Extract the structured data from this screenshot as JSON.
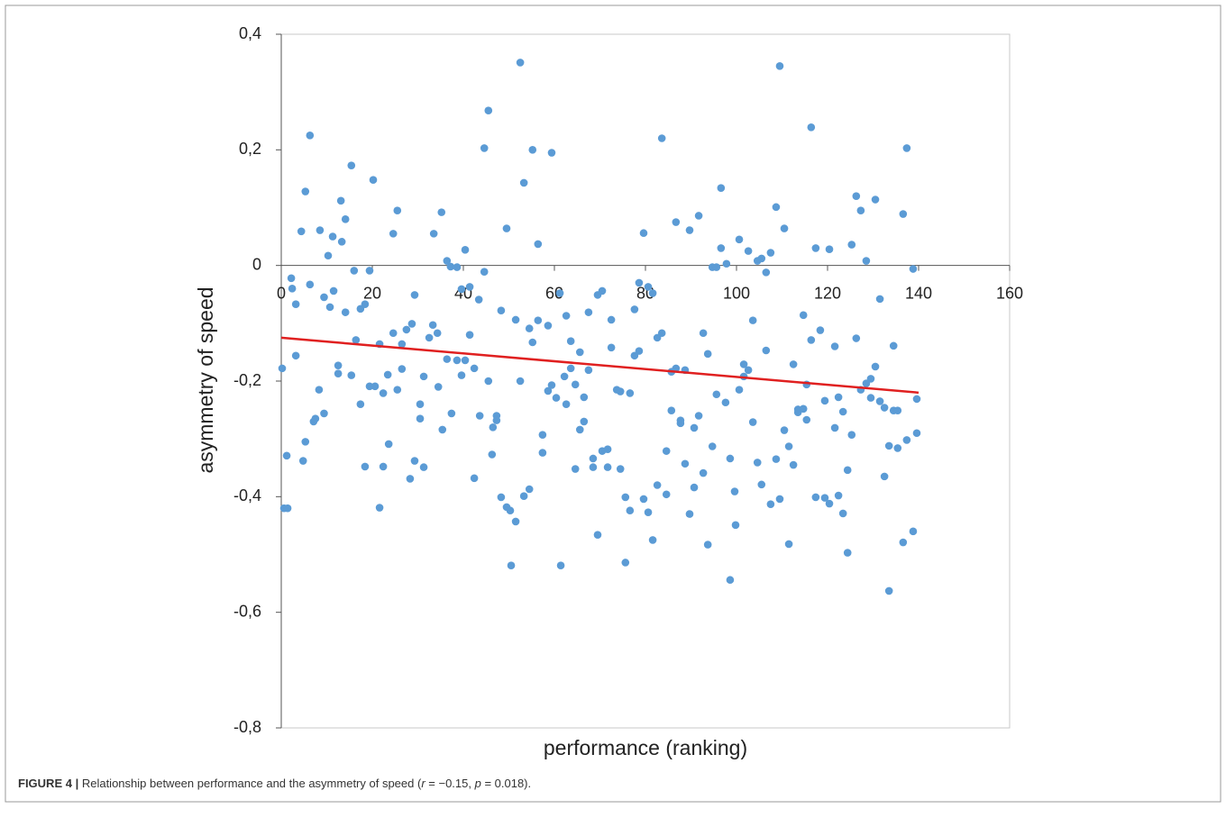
{
  "chart_data": {
    "type": "scatter",
    "x_label": "performance  (ranking)",
    "y_label": "asymmetry  of speed",
    "caption": {
      "label": "FIGURE 4 |",
      "parts": [
        "Relationship between performance and the asymmetry of speed (",
        "r",
        " = −0.15, ",
        "p",
        " = 0.018)."
      ]
    },
    "xlim": [
      0,
      160
    ],
    "xticks": [
      0,
      20,
      40,
      60,
      80,
      100,
      120,
      140,
      160
    ],
    "ylim": [
      -0.8,
      0.4
    ],
    "yticks": [
      {
        "value": -0.8,
        "label": "-0,8"
      },
      {
        "value": -0.6,
        "label": "-0,6"
      },
      {
        "value": -0.4,
        "label": "-0,4"
      },
      {
        "value": -0.2,
        "label": "-0,2"
      },
      0,
      {
        "value": 0.2,
        "label": "0,2"
      },
      {
        "value": 0.4,
        "label": "0,4"
      }
    ],
    "color": "#5b9bd5",
    "trendline": {
      "x": [
        0,
        140
      ],
      "y": [
        -0.125,
        -0.22
      ],
      "color": "#e02020"
    },
    "x": [
      0.2,
      0.6,
      1.4,
      1.2,
      2.2,
      2.4,
      3.2,
      3.2,
      4.4,
      4.8,
      5.3,
      5.3,
      6.3,
      6.3,
      7.1,
      7.5,
      8.3,
      8.5,
      9.4,
      9.4,
      10.3,
      10.7,
      11.3,
      11.5,
      12.5,
      12.5,
      13.1,
      13.3,
      14.1,
      14.1,
      15.4,
      15.4,
      16,
      16.4,
      17.4,
      17.4,
      18.4,
      18.4,
      19.4,
      19.4,
      20.2,
      20.6,
      21.6,
      21.6,
      22.4,
      22.4,
      23.4,
      23.6,
      24.6,
      24.6,
      25.5,
      25.5,
      26.5,
      26.5,
      27.5,
      28.3,
      28.7,
      29.3,
      29.3,
      30.5,
      30.5,
      31.3,
      31.3,
      32.5,
      33.3,
      33.5,
      34.3,
      34.5,
      35.2,
      35.4,
      36.4,
      36.4,
      37.2,
      37.4,
      38.6,
      38.6,
      39.6,
      39.6,
      40.4,
      40.4,
      41.4,
      41.4,
      42.4,
      42.4,
      43.4,
      43.6,
      44.6,
      44.6,
      45.5,
      45.5,
      46.3,
      46.5,
      47.3,
      47.3,
      48.3,
      48.3,
      49.5,
      49.5,
      50.3,
      50.5,
      51.5,
      51.5,
      52.5,
      52.5,
      53.3,
      53.3,
      54.5,
      54.5,
      55.2,
      55.2,
      56.4,
      56.4,
      57.4,
      57.4,
      58.6,
      58.6,
      59.4,
      59.4,
      60.4,
      61.2,
      61.4,
      62.2,
      62.6,
      62.6,
      63.6,
      63.6,
      64.6,
      64.6,
      65.6,
      65.6,
      66.5,
      66.5,
      67.5,
      67.5,
      68.5,
      68.5,
      69.5,
      69.5,
      70.5,
      70.5,
      71.7,
      71.7,
      72.5,
      72.5,
      73.7,
      74.5,
      74.5,
      75.6,
      75.6,
      76.6,
      76.6,
      77.6,
      77.6,
      78.6,
      78.6,
      79.6,
      79.6,
      80.6,
      80.6,
      81.6,
      81.6,
      82.6,
      82.6,
      83.6,
      83.6,
      84.6,
      84.6,
      85.7,
      85.7,
      86.7,
      86.7,
      87.7,
      87.7,
      88.7,
      88.7,
      89.7,
      89.7,
      90.7,
      90.7,
      91.7,
      91.7,
      92.7,
      92.7,
      93.7,
      93.7,
      94.7,
      94.7,
      95.6,
      95.6,
      96.6,
      96.6,
      97.6,
      97.8,
      98.6,
      98.6,
      99.6,
      99.8,
      100.6,
      100.6,
      101.6,
      101.6,
      102.6,
      102.6,
      103.6,
      103.6,
      104.6,
      104.6,
      105.5,
      105.5,
      106.5,
      106.5,
      107.5,
      107.5,
      108.7,
      108.7,
      109.5,
      109.5,
      110.5,
      110.5,
      111.5,
      111.5,
      112.5,
      112.5,
      113.5,
      113.5,
      114.7,
      114.7,
      115.4,
      115.4,
      116.4,
      116.4,
      117.4,
      117.4,
      118.4,
      119.4,
      119.4,
      120.4,
      120.4,
      121.6,
      121.6,
      122.4,
      122.4,
      123.4,
      123.4,
      124.4,
      124.4,
      125.3,
      125.3,
      126.3,
      126.3,
      127.3,
      127.3,
      128.5,
      128.5,
      129.5,
      129.5,
      130.5,
      130.5,
      131.5,
      131.5,
      132.5,
      132.5,
      133.5,
      133.5,
      134.5,
      134.5,
      135.4,
      135.4,
      136.6,
      136.6,
      137.4,
      137.4,
      138.8,
      138.8,
      139.6,
      139.6
    ],
    "values": [
      -0.178,
      -0.42,
      -0.42,
      -0.329,
      -0.022,
      -0.04,
      -0.067,
      -0.156,
      0.059,
      -0.338,
      0.128,
      -0.305,
      0.225,
      -0.033,
      -0.27,
      -0.265,
      -0.215,
      0.061,
      -0.055,
      -0.256,
      0.017,
      -0.072,
      0.05,
      -0.044,
      -0.173,
      -0.187,
      0.112,
      0.041,
      0.08,
      -0.081,
      0.173,
      -0.19,
      -0.009,
      -0.129,
      -0.24,
      -0.075,
      -0.067,
      -0.348,
      -0.009,
      -0.209,
      0.148,
      -0.209,
      -0.136,
      -0.419,
      -0.221,
      -0.348,
      -0.189,
      -0.309,
      0.055,
      -0.117,
      0.095,
      -0.215,
      -0.136,
      -0.179,
      -0.111,
      -0.369,
      -0.101,
      -0.051,
      -0.338,
      -0.24,
      -0.265,
      -0.192,
      -0.349,
      -0.125,
      -0.103,
      0.055,
      -0.117,
      -0.21,
      0.092,
      -0.284,
      0.008,
      -0.162,
      -0.002,
      -0.256,
      -0.003,
      -0.164,
      -0.041,
      -0.19,
      0.027,
      -0.164,
      -0.037,
      -0.12,
      -0.178,
      -0.368,
      -0.059,
      -0.26,
      0.203,
      -0.011,
      0.268,
      -0.2,
      -0.327,
      -0.28,
      -0.268,
      -0.26,
      -0.078,
      -0.401,
      0.064,
      -0.418,
      -0.424,
      -0.519,
      -0.094,
      -0.443,
      0.351,
      -0.2,
      0.143,
      -0.399,
      -0.109,
      -0.387,
      0.2,
      -0.133,
      0.037,
      -0.095,
      -0.293,
      -0.324,
      -0.104,
      -0.217,
      0.195,
      -0.207,
      -0.229,
      -0.048,
      -0.519,
      -0.192,
      -0.24,
      -0.087,
      -0.131,
      -0.178,
      -0.352,
      -0.206,
      -0.15,
      -0.284,
      -0.228,
      -0.27,
      -0.081,
      -0.181,
      -0.334,
      -0.349,
      -0.466,
      -0.051,
      -0.044,
      -0.321,
      -0.318,
      -0.349,
      -0.094,
      -0.142,
      -0.215,
      -0.352,
      -0.218,
      -0.401,
      -0.514,
      -0.424,
      -0.221,
      -0.076,
      -0.156,
      -0.03,
      -0.148,
      0.056,
      -0.404,
      -0.037,
      -0.427,
      -0.475,
      -0.048,
      -0.125,
      -0.38,
      0.22,
      -0.117,
      -0.321,
      -0.396,
      -0.184,
      -0.251,
      0.075,
      -0.178,
      -0.268,
      -0.273,
      -0.181,
      -0.343,
      0.061,
      -0.43,
      -0.281,
      -0.384,
      0.086,
      -0.26,
      -0.359,
      -0.117,
      -0.153,
      -0.483,
      -0.003,
      -0.313,
      -0.003,
      -0.223,
      0.134,
      0.03,
      -0.237,
      0.003,
      -0.334,
      -0.544,
      -0.391,
      -0.449,
      0.045,
      -0.215,
      -0.171,
      -0.192,
      0.025,
      -0.181,
      -0.095,
      -0.271,
      0.008,
      -0.341,
      0.012,
      -0.379,
      -0.012,
      -0.147,
      0.022,
      -0.413,
      0.101,
      -0.335,
      0.345,
      -0.404,
      0.064,
      -0.285,
      -0.313,
      -0.482,
      -0.171,
      -0.345,
      -0.249,
      -0.254,
      -0.086,
      -0.248,
      -0.206,
      -0.267,
      0.239,
      -0.129,
      0.03,
      -0.401,
      -0.112,
      -0.234,
      -0.402,
      0.028,
      -0.412,
      -0.14,
      -0.281,
      -0.228,
      -0.398,
      -0.253,
      -0.429,
      -0.354,
      -0.497,
      0.036,
      -0.293,
      0.12,
      -0.126,
      0.095,
      -0.215,
      0.008,
      -0.204,
      -0.196,
      -0.229,
      0.114,
      -0.175,
      -0.058,
      -0.235,
      -0.246,
      -0.365,
      -0.312,
      -0.563,
      -0.139,
      -0.251,
      -0.251,
      -0.316,
      0.089,
      -0.479,
      0.203,
      -0.302,
      -0.006,
      -0.46,
      -0.231,
      -0.29
    ]
  }
}
